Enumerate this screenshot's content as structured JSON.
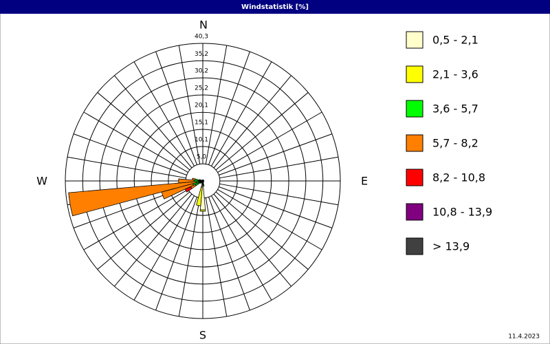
{
  "chart_data": {
    "type": "windrose",
    "title": "Windstatistik [%]",
    "date": "11.4.2023",
    "direction_labels": [
      "N",
      "E",
      "S",
      "W"
    ],
    "x": [
      160,
      170,
      180,
      190,
      200,
      230,
      240,
      250,
      260,
      270,
      280,
      290,
      300
    ],
    "rlim": [
      0,
      40.3
    ],
    "rticks": [
      {
        "value": 5.0,
        "label": "5,0"
      },
      {
        "value": 10.1,
        "label": "10,1"
      },
      {
        "value": 15.1,
        "label": "15,1"
      },
      {
        "value": 20.1,
        "label": "20,1"
      },
      {
        "value": 25.2,
        "label": "25,2"
      },
      {
        "value": 30.2,
        "label": "30,2"
      },
      {
        "value": 35.2,
        "label": "35,2"
      },
      {
        "value": 40.3,
        "label": "40,3"
      }
    ],
    "series": [
      {
        "name": "0,5 - 2,1",
        "color": "#ffffcc",
        "values": [
          0.5,
          1.5,
          8.5,
          1.8,
          0.5,
          0.3,
          0.4,
          0.4,
          0.3,
          0.4,
          0.4,
          0.3,
          0.3
        ]
      },
      {
        "name": "2,1 - 3,6",
        "color": "#ffff00",
        "values": [
          0,
          0,
          0.4,
          5.5,
          0.3,
          0.2,
          0.5,
          0.6,
          0.5,
          0.4,
          0.4,
          0.2,
          0
        ]
      },
      {
        "name": "3,6 - 5,7",
        "color": "#00ff00",
        "values": [
          0,
          0,
          0,
          0,
          0,
          0.5,
          1.5,
          2.0,
          1.2,
          1.8,
          1.5,
          0.5,
          0
        ]
      },
      {
        "name": "5,7 - 8,2",
        "color": "#ff8000",
        "values": [
          0,
          0,
          0,
          0,
          0,
          0,
          1.5,
          9.5,
          37.5,
          4.5,
          0.8,
          0,
          0
        ]
      },
      {
        "name": "8,2 - 10,8",
        "color": "#ff0000",
        "values": [
          0,
          0,
          0,
          0,
          0,
          0,
          1.8,
          0,
          0,
          0,
          0,
          0,
          0
        ]
      },
      {
        "name": "10,8 - 13,9",
        "color": "#800080",
        "values": [
          0,
          0,
          0,
          0,
          0,
          0,
          0,
          0,
          0,
          0,
          0,
          0,
          0
        ]
      },
      {
        "name": "> 13,9",
        "color": "#404040",
        "values": [
          0,
          0,
          0,
          0,
          0,
          0,
          0,
          0,
          0,
          0,
          0,
          0,
          0
        ]
      }
    ]
  }
}
